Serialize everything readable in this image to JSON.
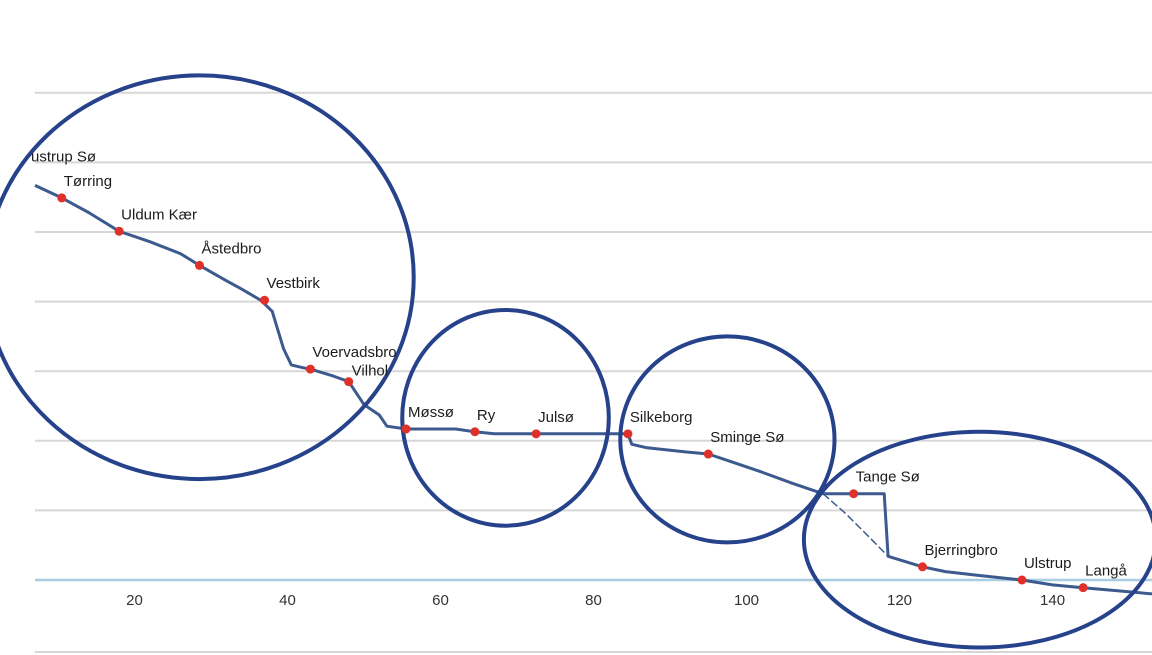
{
  "chart_data": {
    "type": "line",
    "title": "",
    "xlabel": "",
    "ylabel": "",
    "xlim": [
      7,
      153
    ],
    "ylim": [
      0,
      7.5
    ],
    "x_ticks": [
      20,
      40,
      60,
      80,
      100,
      120,
      140
    ],
    "grid": "horizontal",
    "colors": {
      "line": "#3d5a8f",
      "point": "#e0302a",
      "grid": "#d7d7d7",
      "baseline": "#a9cde3",
      "ring": "#26428b"
    },
    "series": [
      {
        "x": [
          7,
          10.5,
          14,
          18,
          22,
          26,
          28.5,
          32,
          34,
          36.5,
          38,
          39.5,
          40.5,
          42,
          43,
          46,
          48,
          50,
          52,
          53,
          55.5,
          58,
          62,
          64.5,
          67,
          72.5,
          78,
          84.5,
          85,
          87,
          92,
          95,
          98,
          102,
          106,
          110,
          114,
          118,
          118.5,
          120,
          123,
          126,
          130,
          136,
          140,
          144,
          147,
          153
        ],
        "y": [
          5.67,
          5.49,
          5.28,
          5.01,
          4.86,
          4.69,
          4.52,
          4.3,
          4.18,
          4.02,
          3.86,
          3.32,
          3.09,
          3.05,
          3.03,
          2.93,
          2.85,
          2.52,
          2.37,
          2.21,
          2.17,
          2.17,
          2.17,
          2.13,
          2.1,
          2.1,
          2.1,
          2.1,
          1.95,
          1.9,
          1.84,
          1.81,
          1.7,
          1.55,
          1.39,
          1.24,
          1.24,
          1.24,
          0.34,
          0.29,
          0.19,
          0.12,
          0.07,
          0.0,
          -0.07,
          -0.11,
          -0.14,
          -0.2
        ]
      },
      {
        "x": [
          110,
          113,
          116,
          118.5
        ],
        "y": [
          1.24,
          0.95,
          0.62,
          0.34
        ]
      }
    ],
    "points": [
      {
        "label": "ustrup Sø",
        "x": 7,
        "y": 5.67
      },
      {
        "label": "Tørring",
        "x": 10.5,
        "y": 5.49
      },
      {
        "label": "Uldum Kær",
        "x": 18,
        "y": 5.01
      },
      {
        "label": "Åstedbro",
        "x": 28.5,
        "y": 4.52
      },
      {
        "label": "Vestbirk",
        "x": 37,
        "y": 4.02
      },
      {
        "label": "Voervadsbro",
        "x": 43,
        "y": 3.03
      },
      {
        "label": "Vilhol",
        "x": 48,
        "y": 2.85
      },
      {
        "label": "Møssø",
        "x": 55.5,
        "y": 2.17
      },
      {
        "label": "Ry",
        "x": 64.5,
        "y": 2.13
      },
      {
        "label": "Julsø",
        "x": 72.5,
        "y": 2.1
      },
      {
        "label": "Silkeborg",
        "x": 84.5,
        "y": 2.1
      },
      {
        "label": "Sminge Sø",
        "x": 95,
        "y": 1.81
      },
      {
        "label": "Tange Sø",
        "x": 114,
        "y": 1.24
      },
      {
        "label": "Bjerringbro",
        "x": 123,
        "y": 0.19
      },
      {
        "label": "Ulstrup",
        "x": 136,
        "y": 0.0
      },
      {
        "label": "Langå",
        "x": 144,
        "y": -0.11
      }
    ],
    "highlight_rings": [
      {
        "cx": 28.5,
        "cy": 4.35,
        "rx": 28,
        "ry": 2.9
      },
      {
        "cx": 68.5,
        "cy": 2.33,
        "rx": 13.5,
        "ry": 1.55
      },
      {
        "cx": 97.5,
        "cy": 2.02,
        "rx": 14,
        "ry": 1.48
      },
      {
        "cx": 130.5,
        "cy": 0.58,
        "rx": 23,
        "ry": 1.55
      }
    ]
  }
}
